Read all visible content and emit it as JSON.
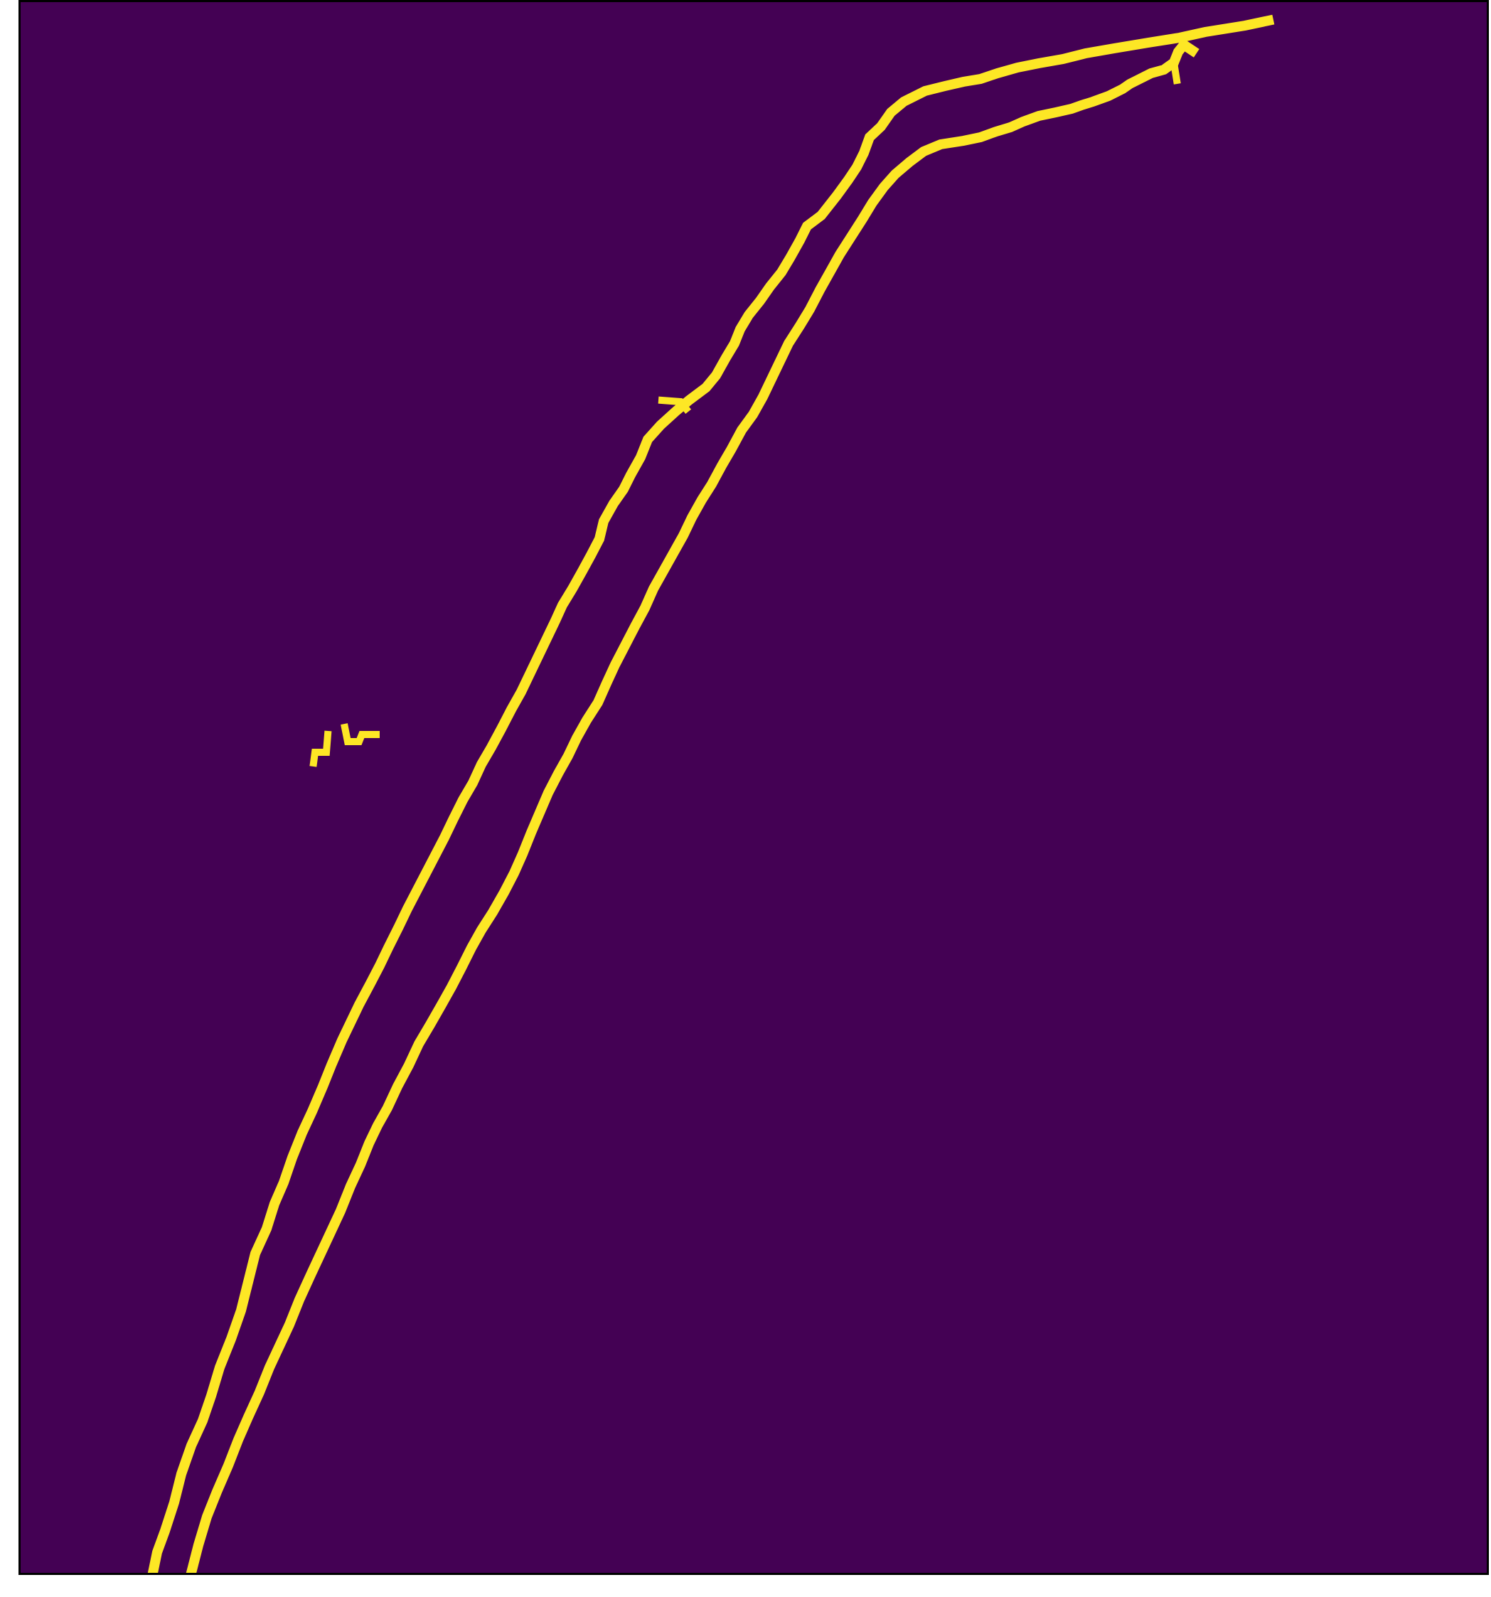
{
  "image": {
    "kind": "binary-mask",
    "colors": {
      "background": "#440154",
      "foreground": "#fde725",
      "frame": "#000000",
      "page": "#ffffff"
    }
  }
}
